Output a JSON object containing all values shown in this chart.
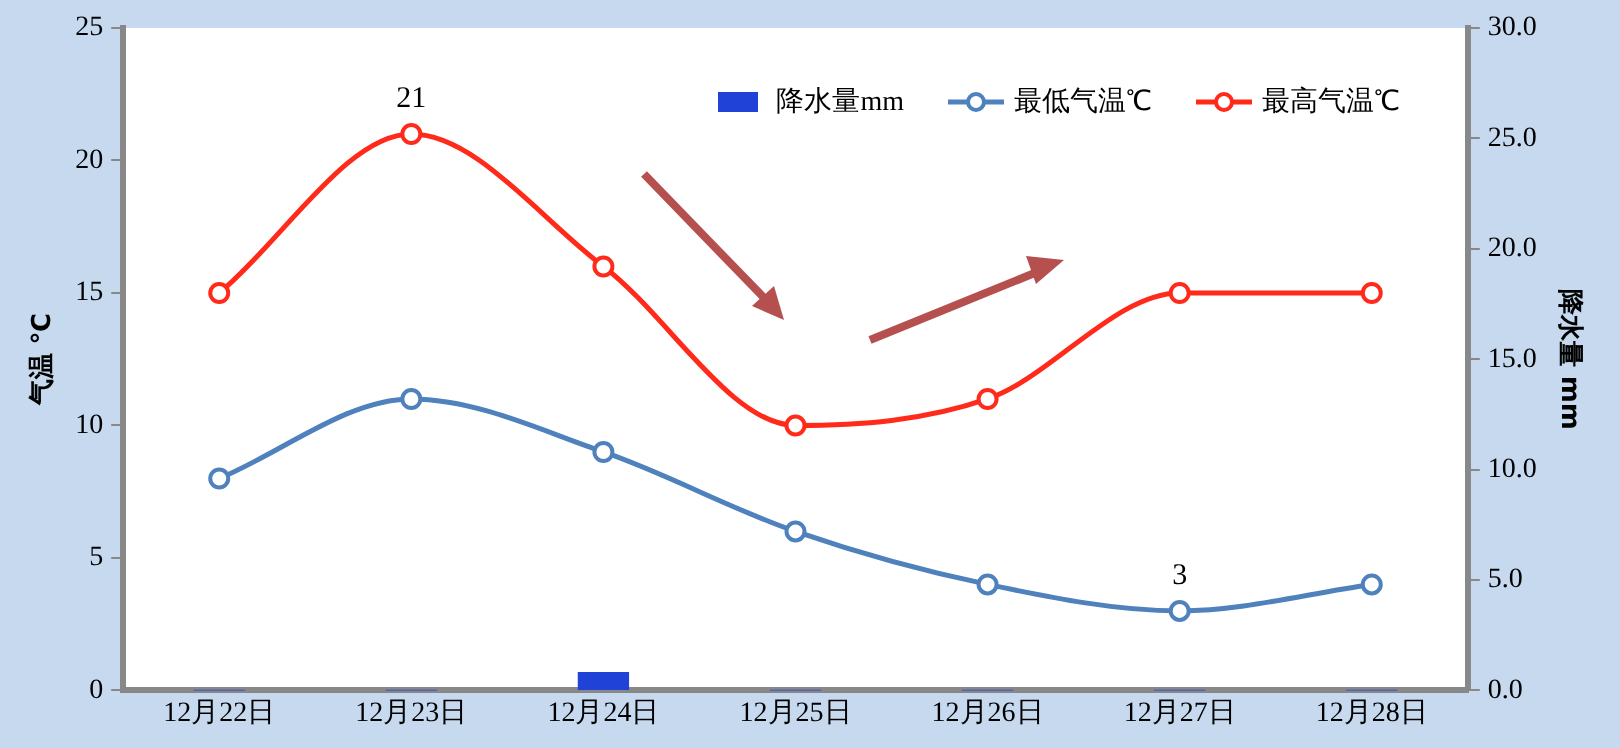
{
  "chart_data": {
    "type": "line",
    "ylabel": "气温 ℃",
    "y2label": "降水量 mm",
    "categories": [
      "12月22日",
      "12月23日",
      "12月24日",
      "12月25日",
      "12月26日",
      "12月27日",
      "12月28日"
    ],
    "series": [
      {
        "name": "降水量mm",
        "type": "bar",
        "axis": "y2",
        "color": "#2142d6",
        "values": [
          0,
          0,
          0.8,
          0,
          0,
          0,
          0
        ]
      },
      {
        "name": "最低气温℃",
        "color": "#4f81bd",
        "values": [
          8,
          11,
          9,
          6,
          4,
          3,
          4
        ],
        "value_labels": [
          null,
          null,
          null,
          null,
          null,
          "3",
          null
        ]
      },
      {
        "name": "最高气温℃",
        "color": "#ff2a1a",
        "values": [
          15,
          21,
          16,
          10,
          11,
          15,
          15
        ],
        "value_labels": [
          null,
          "21",
          null,
          null,
          null,
          null,
          null
        ]
      }
    ],
    "ylim": [
      0,
      25
    ],
    "yticks": [
      0,
      5,
      10,
      15,
      20,
      25
    ],
    "y2lim": [
      0,
      30
    ],
    "y2ticks": [
      {
        "value": 0,
        "label": "0.0"
      },
      {
        "value": 5,
        "label": "5.0"
      },
      {
        "value": 10,
        "label": "10.0"
      },
      {
        "value": 15,
        "label": "15.0"
      },
      {
        "value": 20,
        "label": "20.0"
      },
      {
        "value": 25,
        "label": "25.0"
      },
      {
        "value": 30,
        "label": "30.0"
      }
    ],
    "grid": false,
    "legend": "top right",
    "marker": "circle",
    "line_style": "solid"
  }
}
